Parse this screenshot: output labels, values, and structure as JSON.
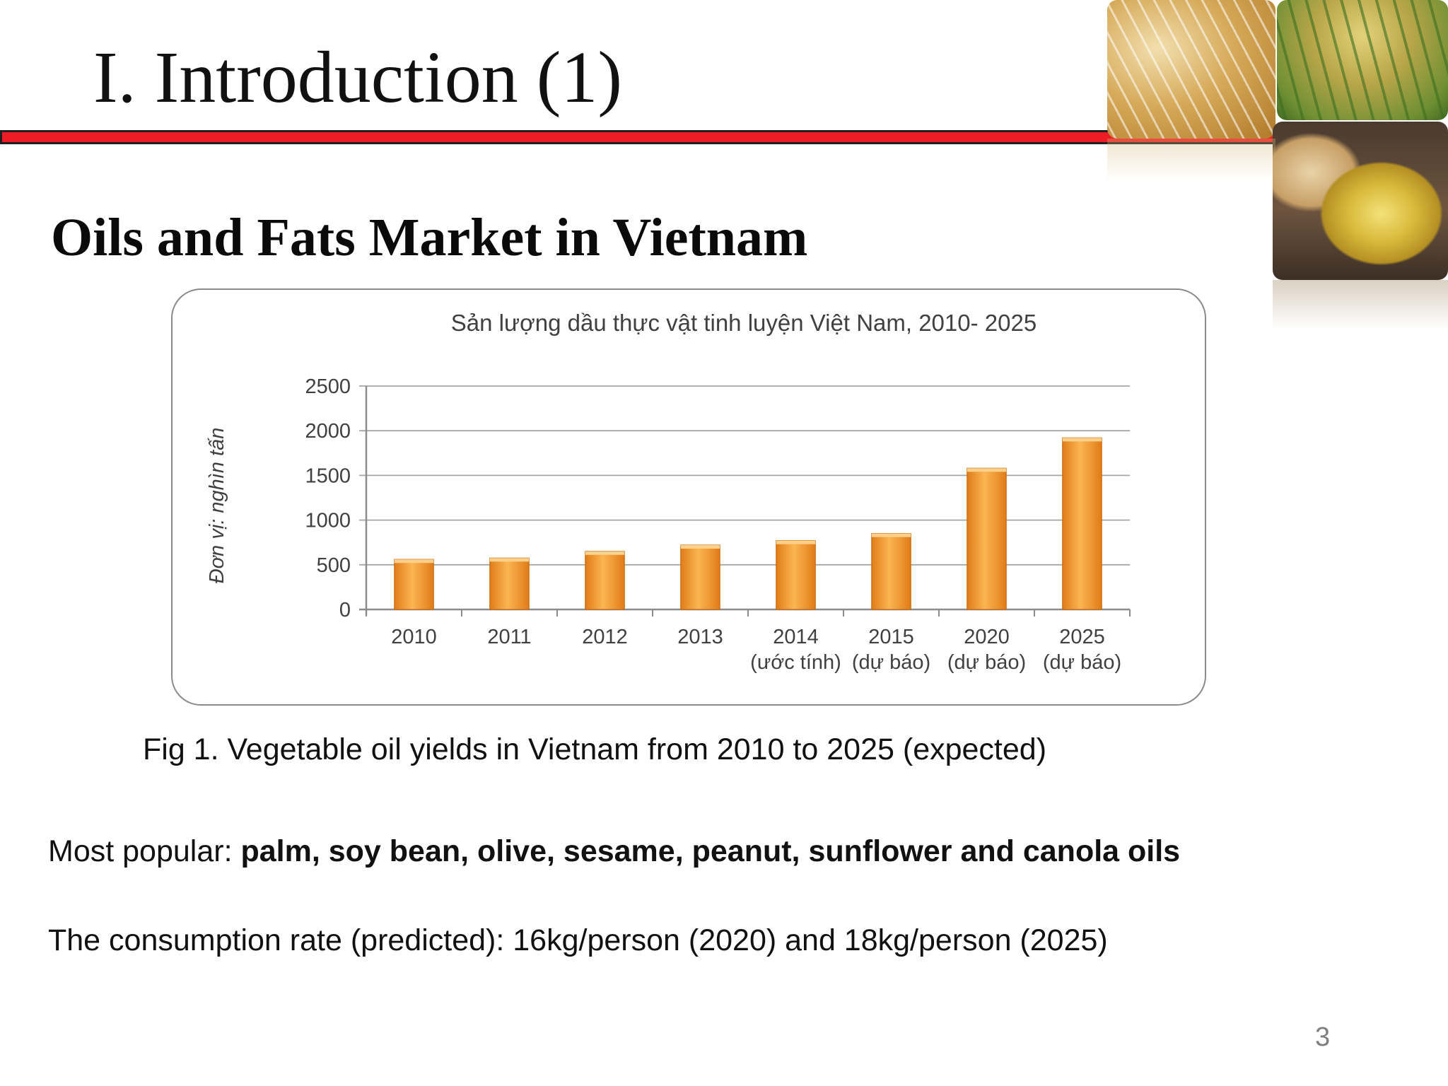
{
  "slide": {
    "title": "I. Introduction (1)",
    "section_heading": "Oils and Fats Market in Vietnam",
    "caption": "Fig 1. Vegetable oil yields in Vietnam from 2010 to 2025 (expected)",
    "popular_label": "Most popular: ",
    "popular_items": "palm, soy bean, olive, sesame, peanut, sunflower and canola oils",
    "consumption_line": "The consumption rate (predicted): 16kg/person (2020) and 18kg/person (2025)",
    "page_number": "3"
  },
  "colors": {
    "title_rule": "#ee1c24",
    "bar_light": "#fbb552",
    "bar_dark": "#e07c18"
  },
  "chart_data": {
    "type": "bar",
    "title": "Sản lượng dầu thực vật tinh luyện Việt Nam, 2010- 2025",
    "ylabel": "Đơn vị: nghìn tấn",
    "xlabel": "",
    "ylim": [
      0,
      2500
    ],
    "yticks": [
      0,
      500,
      1000,
      1500,
      2000,
      2500
    ],
    "grid": true,
    "categories": [
      [
        "2010"
      ],
      [
        "2011"
      ],
      [
        "2012"
      ],
      [
        "2013"
      ],
      [
        "2014",
        "(ước tính)"
      ],
      [
        "2015",
        "(dự báo)"
      ],
      [
        "2020",
        "(dự báo)"
      ],
      [
        "2025",
        "(dự báo)"
      ]
    ],
    "values": [
      560,
      575,
      650,
      720,
      770,
      850,
      1580,
      1920
    ]
  }
}
